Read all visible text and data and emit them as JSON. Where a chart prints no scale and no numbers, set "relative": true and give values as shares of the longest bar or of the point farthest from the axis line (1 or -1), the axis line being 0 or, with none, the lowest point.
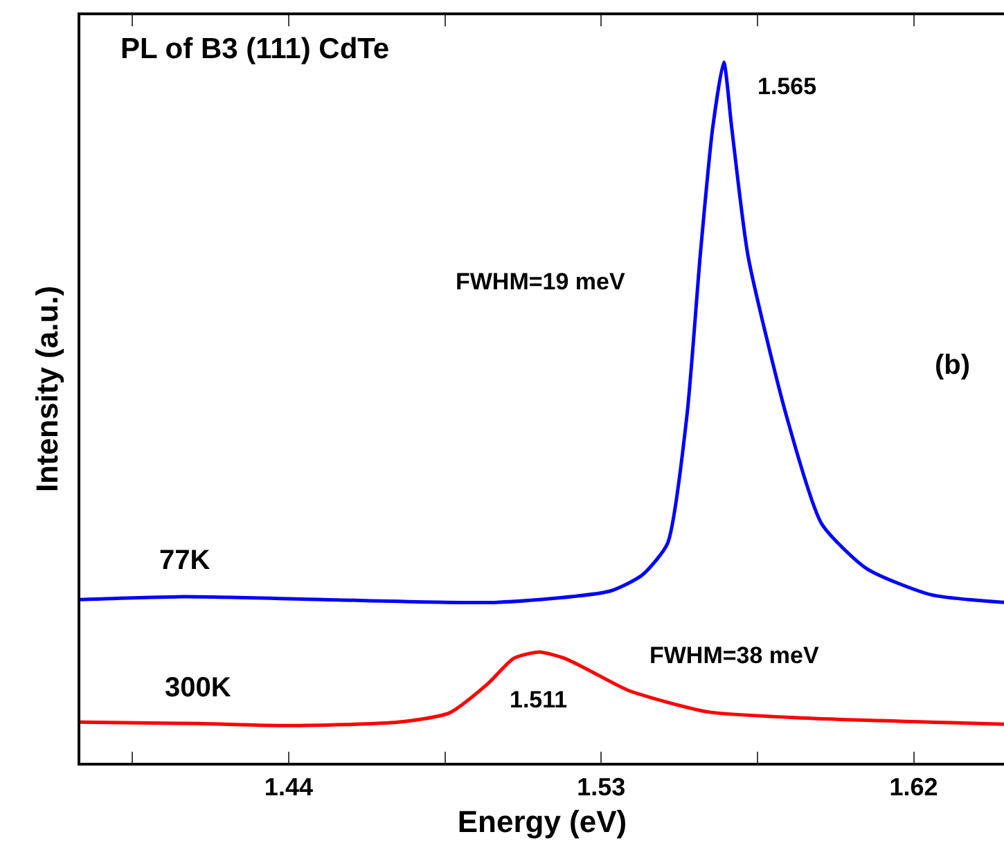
{
  "chart_data": {
    "type": "line",
    "title": "PL of B3 (111) CdTe",
    "xlabel": "Energy (eV)",
    "ylabel": "Intensity (a.u.)",
    "relative": true,
    "xlim": [
      1.38,
      1.646
    ],
    "xticks": [
      {
        "value": 1.395,
        "label": null
      },
      1.44,
      {
        "value": 1.485,
        "label": null
      },
      1.53,
      {
        "value": 1.575,
        "label": null
      },
      1.62
    ],
    "series": [
      {
        "name": "77K",
        "color": "#0000ff",
        "x": [
          1.38,
          1.41,
          1.45,
          1.5,
          1.5325,
          1.5418,
          1.5491,
          1.5547,
          1.5585,
          1.5621,
          1.5653,
          1.5676,
          1.5723,
          1.5833,
          1.5935,
          1.6065,
          1.6249,
          1.646
        ],
        "values": [
          0.233,
          0.237,
          0.233,
          0.229,
          0.245,
          0.268,
          0.313,
          0.496,
          0.723,
          0.906,
          1.0,
          0.906,
          0.723,
          0.496,
          0.341,
          0.277,
          0.24,
          0.229
        ]
      },
      {
        "name": "300K",
        "color": "#ff0000",
        "x": [
          1.38,
          1.414,
          1.44,
          1.4715,
          1.4862,
          1.4974,
          1.5048,
          1.5122,
          1.5195,
          1.5269,
          1.538,
          1.5603,
          1.588,
          1.646
        ],
        "values": [
          0.058,
          0.056,
          0.053,
          0.058,
          0.071,
          0.113,
          0.149,
          0.158,
          0.149,
          0.131,
          0.103,
          0.073,
          0.064,
          0.055
        ]
      }
    ],
    "annotations": [
      "1.565",
      "FWHM=19 meV",
      "(b)",
      "FWHM=38 meV",
      "1.511"
    ],
    "legend": false,
    "line_style": "solid",
    "marker": "none"
  }
}
